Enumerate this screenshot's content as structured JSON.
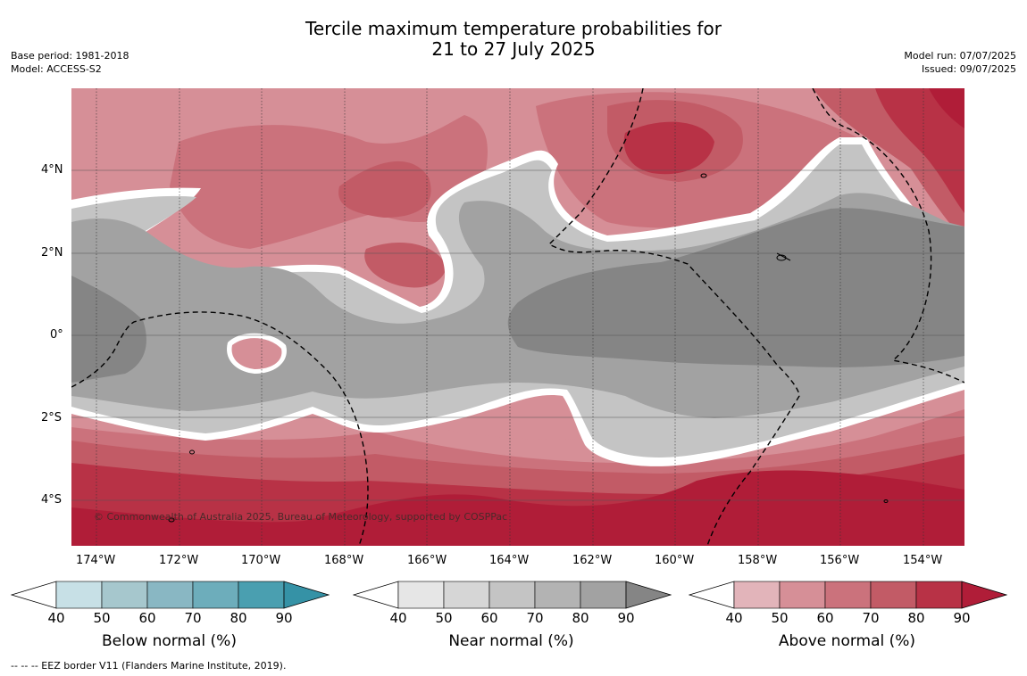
{
  "title": {
    "line1": "Tercile maximum temperature probabilities for",
    "line2": "21 to 27 July 2025"
  },
  "meta_left": {
    "base_period": "Base period: 1981-2018",
    "model": "Model: ACCESS-S2"
  },
  "meta_right": {
    "model_run": "Model run: 07/07/2025",
    "issued": "Issued: 09/07/2025"
  },
  "map": {
    "lat_labels": [
      "4°N",
      "2°N",
      "0°",
      "2°S",
      "4°S"
    ],
    "lon_labels": [
      "174°W",
      "172°W",
      "170°W",
      "168°W",
      "166°W",
      "164°W",
      "162°W",
      "160°W",
      "158°W",
      "156°W",
      "154°W"
    ],
    "copyright": "© Commonwealth of Australia 2025, Bureau of Meteorology, supported by COSPPac"
  },
  "colorbars": [
    {
      "id": "below",
      "label": "Below normal (%)",
      "ticks": [
        "40",
        "50",
        "60",
        "70",
        "80",
        "90"
      ],
      "colors": [
        "#ffffff",
        "#c7e0e6",
        "#a6c7cd",
        "#89b7c3",
        "#6dadbb",
        "#4a9fb0",
        "#3592a6"
      ]
    },
    {
      "id": "near",
      "label": "Near normal (%)",
      "ticks": [
        "40",
        "50",
        "60",
        "70",
        "80",
        "90"
      ],
      "colors": [
        "#ffffff",
        "#e6e6e6",
        "#d6d6d6",
        "#c4c4c4",
        "#b3b3b3",
        "#a2a2a2",
        "#858585"
      ]
    },
    {
      "id": "above",
      "label": "Above normal (%)",
      "ticks": [
        "40",
        "50",
        "60",
        "70",
        "80",
        "90"
      ],
      "colors": [
        "#ffffff",
        "#e2b4ba",
        "#d68f97",
        "#cb727c",
        "#c25b66",
        "#b83246",
        "#b01d38"
      ]
    }
  ],
  "footnote": "-- -- -- EEZ border V11 (Flanders Marine Institute, 2019)."
}
